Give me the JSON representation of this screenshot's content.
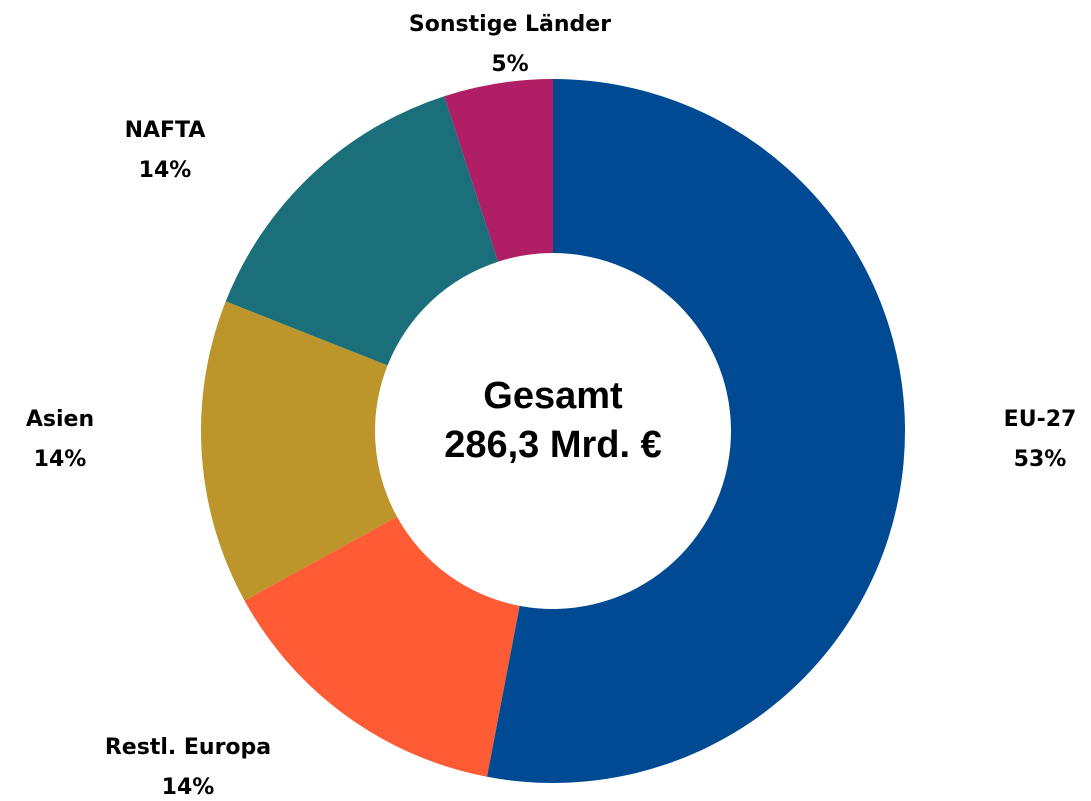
{
  "chart_data": {
    "type": "donut",
    "center_text": [
      "Gesamt",
      "286,3 Mrd. €"
    ],
    "categories": [
      "EU-27",
      "Restl. Europa",
      "Asien",
      "NAFTA",
      "Sonstige Länder"
    ],
    "values": [
      53,
      14,
      14,
      14,
      5
    ],
    "value_labels": [
      "53%",
      "14%",
      "14%",
      "14%",
      "5%"
    ],
    "colors": [
      "#004a93",
      "#ff5c35",
      "#bc952b",
      "#1a6f7a",
      "#b01f65"
    ]
  }
}
